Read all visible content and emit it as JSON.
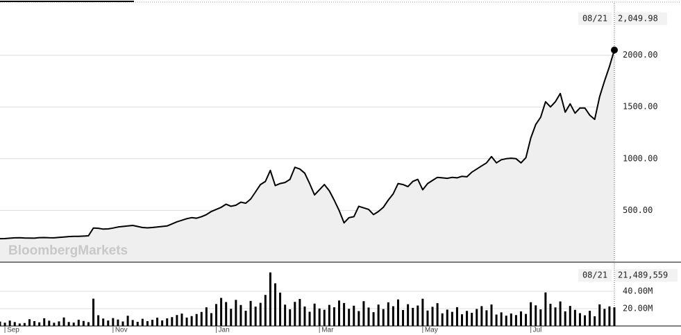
{
  "chart_data": [
    {
      "type": "line",
      "watermark": "BloombergMarkets",
      "color": "#000000",
      "grid": true,
      "ylim": [
        0,
        2500
      ],
      "yticks": [
        {
          "value": 500,
          "label": "500.00"
        },
        {
          "value": 1000,
          "label": "1000.00"
        },
        {
          "value": 1500,
          "label": "1500.00"
        },
        {
          "value": 2000,
          "label": "2000.00"
        }
      ],
      "last_date": "08/21",
      "last_value_label": "2,049.98",
      "categories": [
        null,
        "Sep",
        null,
        null,
        null,
        null,
        null,
        null,
        null,
        null,
        null,
        null,
        null,
        null,
        null,
        null,
        null,
        null,
        null,
        null,
        null,
        null,
        null,
        "Nov",
        null,
        null,
        null,
        null,
        null,
        null,
        null,
        null,
        null,
        null,
        null,
        null,
        null,
        null,
        null,
        null,
        null,
        null,
        null,
        null,
        "Jan",
        null,
        null,
        null,
        null,
        null,
        null,
        null,
        null,
        null,
        null,
        null,
        null,
        null,
        null,
        null,
        null,
        null,
        null,
        null,
        null,
        "Mar",
        null,
        null,
        null,
        null,
        null,
        null,
        null,
        null,
        null,
        null,
        null,
        null,
        null,
        null,
        null,
        null,
        null,
        null,
        null,
        null,
        "May",
        null,
        null,
        null,
        null,
        null,
        null,
        null,
        null,
        null,
        null,
        null,
        null,
        null,
        null,
        null,
        null,
        null,
        null,
        null,
        null,
        null,
        "Jul",
        null,
        null,
        null,
        null,
        null,
        null,
        null,
        null,
        null,
        null,
        null,
        null,
        null,
        null,
        null,
        null,
        null
      ],
      "values": [
        227,
        228,
        232,
        235,
        236,
        234,
        233,
        232,
        237,
        238,
        236,
        235,
        240,
        243,
        247,
        250,
        249,
        252,
        255,
        330,
        328,
        320,
        322,
        330,
        340,
        345,
        350,
        355,
        345,
        335,
        332,
        335,
        340,
        345,
        350,
        370,
        390,
        405,
        420,
        430,
        425,
        440,
        460,
        490,
        510,
        530,
        560,
        540,
        550,
        580,
        570,
        610,
        680,
        750,
        780,
        887,
        740,
        760,
        770,
        800,
        917,
        900,
        860,
        760,
        650,
        700,
        750,
        690,
        600,
        500,
        380,
        430,
        440,
        540,
        525,
        510,
        460,
        490,
        530,
        600,
        660,
        760,
        750,
        730,
        780,
        800,
        700,
        760,
        790,
        820,
        815,
        810,
        820,
        815,
        830,
        825,
        870,
        900,
        930,
        960,
        1020,
        960,
        990,
        1000,
        1005,
        1000,
        960,
        1010,
        1200,
        1330,
        1400,
        1550,
        1500,
        1550,
        1630,
        1450,
        1530,
        1440,
        1490,
        1490,
        1420,
        1380,
        1600,
        1750,
        1890,
        2049.98
      ]
    },
    {
      "type": "bar",
      "color": "#000000",
      "ylim": [
        0,
        72000000
      ],
      "yticks": [
        {
          "value": 20000000,
          "label": "20.00M"
        },
        {
          "value": 40000000,
          "label": "40.00M"
        }
      ],
      "last_date": "08/21",
      "last_value_label": "21,489,559",
      "values": [
        5100000,
        3800000,
        6200000,
        4500000,
        2900000,
        3400000,
        7800000,
        5600000,
        4200000,
        8900000,
        6100000,
        3700000,
        5300000,
        9800000,
        4600000,
        3900000,
        7200000,
        5800000,
        4400000,
        31500000,
        12400000,
        8600000,
        6300000,
        9100000,
        7400000,
        5200000,
        11800000,
        6900000,
        4800000,
        8300000,
        5600000,
        7100000,
        9600000,
        6400000,
        8800000,
        10200000,
        12600000,
        14300000,
        9700000,
        11400000,
        13800000,
        16200000,
        21500000,
        14800000,
        25300000,
        32400000,
        27600000,
        19800000,
        30100000,
        24200000,
        17600000,
        28900000,
        22300000,
        26700000,
        35800000,
        61800000,
        49200000,
        38500000,
        24600000,
        19300000,
        27800000,
        31200000,
        22500000,
        16400000,
        25800000,
        20100000,
        18700000,
        24300000,
        21600000,
        29400000,
        26500000,
        19800000,
        23400000,
        17200000,
        28600000,
        21300000,
        15900000,
        24700000,
        19500000,
        27300000,
        22800000,
        30600000,
        18400000,
        25100000,
        20900000,
        23600000,
        31400000,
        17800000,
        22100000,
        26300000,
        14600000,
        18900000,
        16300000,
        21700000,
        13500000,
        17400000,
        15200000,
        19600000,
        22900000,
        18100000,
        24800000,
        13200000,
        15700000,
        11900000,
        14400000,
        12600000,
        16800000,
        13900000,
        27400000,
        23800000,
        19200000,
        38700000,
        25600000,
        21400000,
        28300000,
        16900000,
        23100000,
        18600000,
        14800000,
        12300000,
        17500000,
        11200000,
        24900000,
        19700000,
        22600000,
        21489559
      ]
    }
  ]
}
